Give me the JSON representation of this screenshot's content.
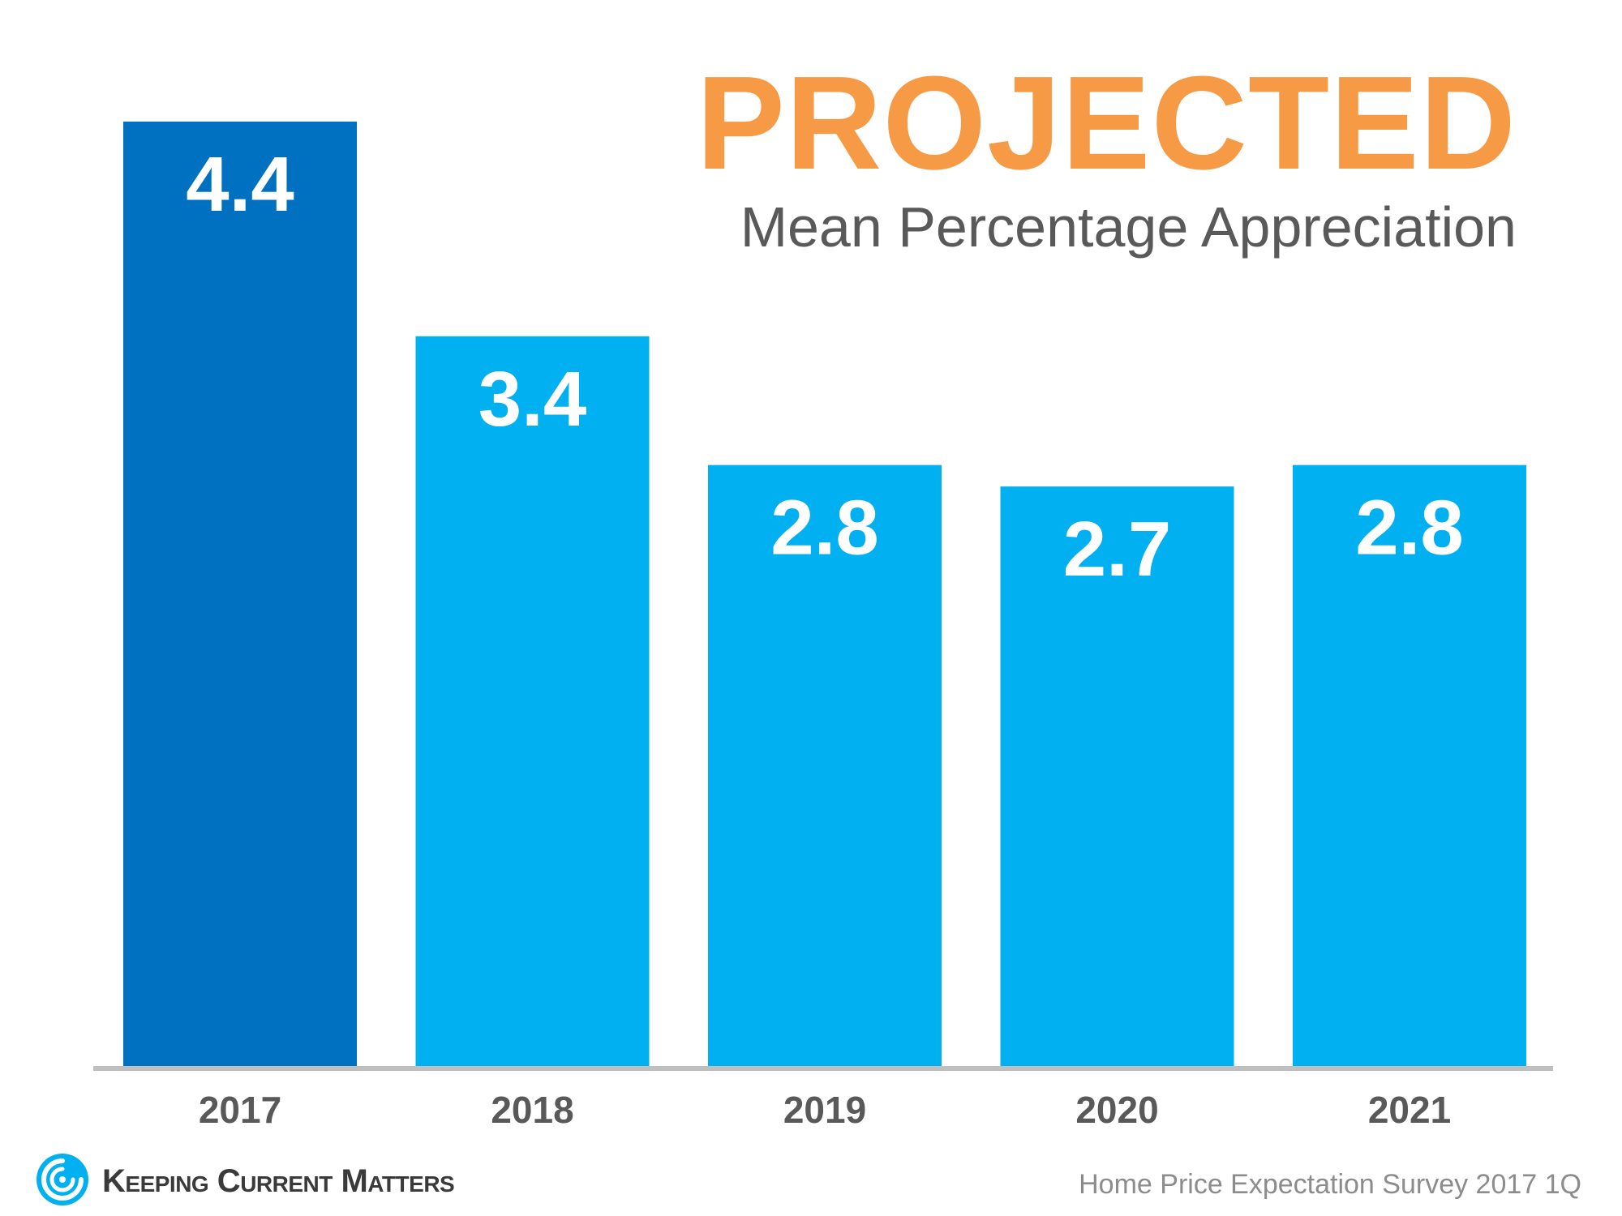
{
  "chart_data": {
    "type": "bar",
    "title": "PROJECTED",
    "subtitle": "Mean Percentage Appreciation",
    "categories": [
      "2017",
      "2018",
      "2019",
      "2020",
      "2021"
    ],
    "values": [
      4.4,
      3.4,
      2.8,
      2.7,
      2.8
    ],
    "data_labels": [
      "4.4",
      "3.4",
      "2.8",
      "2.7",
      "2.8"
    ],
    "bar_colors": [
      "#0070c0",
      "#00b0f0",
      "#00b0f0",
      "#00b0f0",
      "#00b0f0"
    ],
    "ylim": [
      0,
      4.4
    ],
    "grid": false,
    "legend": "none"
  },
  "colors": {
    "title": "#f79a45",
    "subtitle": "#595959",
    "axis": "#bfbfbf",
    "tick_label": "#595959",
    "data_label": "#ffffff"
  },
  "footer": {
    "logo_text": "Keeping Current Matters",
    "logo_icon": "swirl-icon",
    "source": "Home Price Expectation Survey 2017 1Q"
  }
}
